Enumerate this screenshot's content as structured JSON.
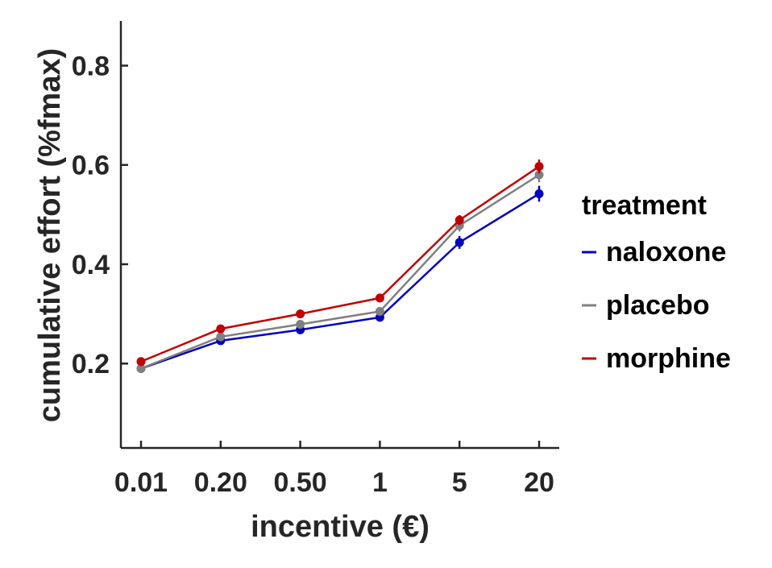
{
  "chart_data": {
    "type": "line",
    "xlabel": "incentive (€)",
    "ylabel": "cumulative effort (%fmax)",
    "categories": [
      "0.01",
      "0.20",
      "0.50",
      "1",
      "5",
      "20"
    ],
    "ylim": [
      0.03,
      0.89
    ],
    "yticks": [
      "0.2",
      "0.4",
      "0.6",
      "0.8"
    ],
    "ytick_values": [
      0.2,
      0.4,
      0.6,
      0.8
    ],
    "legend_title": "treatment",
    "legend_position": "right",
    "grid": false,
    "series": [
      {
        "name": "naloxone",
        "color": "#0000c0",
        "values": [
          0.19,
          0.246,
          0.268,
          0.293,
          0.444,
          0.542
        ],
        "errors": [
          0.004,
          0.005,
          0.005,
          0.006,
          0.013,
          0.016
        ]
      },
      {
        "name": "placebo",
        "color": "#808080",
        "values": [
          0.19,
          0.254,
          0.279,
          0.305,
          0.478,
          0.58
        ],
        "errors": [
          0.004,
          0.005,
          0.005,
          0.006,
          0.012,
          0.015
        ]
      },
      {
        "name": "morphine",
        "color": "#c00000",
        "values": [
          0.204,
          0.27,
          0.3,
          0.332,
          0.489,
          0.597
        ],
        "errors": [
          0.005,
          0.007,
          0.006,
          0.008,
          0.01,
          0.014
        ]
      }
    ]
  }
}
